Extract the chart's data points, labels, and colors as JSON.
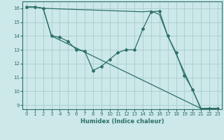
{
  "xlabel": "Humidex (Indice chaleur)",
  "bg_color": "#cce8e8",
  "grid_color": "#aacccc",
  "line_color": "#2d7068",
  "xlim": [
    -0.5,
    23.5
  ],
  "ylim": [
    8.7,
    16.5
  ],
  "yticks": [
    9,
    10,
    11,
    12,
    13,
    14,
    15,
    16
  ],
  "xticks": [
    0,
    1,
    2,
    3,
    4,
    5,
    6,
    7,
    8,
    9,
    10,
    11,
    12,
    13,
    14,
    15,
    16,
    17,
    18,
    19,
    20,
    21,
    22,
    23
  ],
  "line1_x": [
    0,
    1,
    2,
    3,
    4,
    5,
    6,
    7,
    8,
    9,
    10,
    11,
    12,
    13,
    14,
    15,
    16,
    17,
    18,
    19,
    20,
    21,
    22,
    23
  ],
  "line1_y": [
    16.1,
    16.1,
    16.0,
    14.0,
    13.9,
    13.6,
    13.0,
    12.9,
    11.5,
    11.8,
    12.3,
    12.8,
    13.0,
    13.0,
    14.5,
    15.75,
    15.8,
    14.0,
    12.8,
    11.15,
    10.1,
    8.7,
    8.75,
    8.75
  ],
  "line2_x": [
    0,
    1,
    2,
    3,
    21,
    22,
    23
  ],
  "line2_y": [
    16.1,
    16.1,
    16.0,
    14.0,
    8.75,
    8.75,
    8.75
  ],
  "line3_x": [
    0,
    1,
    2,
    14,
    15,
    16,
    17,
    21,
    22,
    23
  ],
  "line3_y": [
    16.1,
    16.1,
    16.0,
    15.75,
    15.8,
    15.55,
    14.0,
    8.75,
    8.75,
    8.75
  ]
}
